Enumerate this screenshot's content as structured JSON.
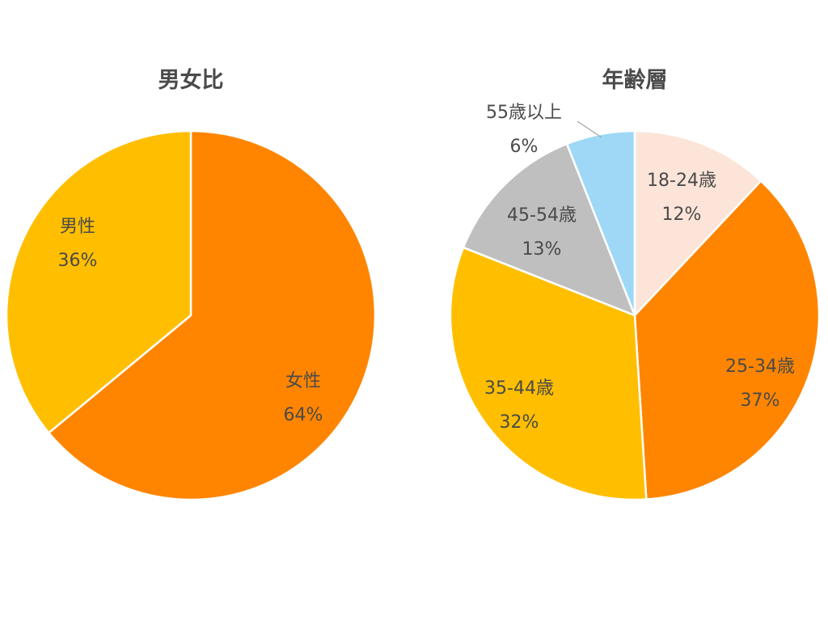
{
  "chart_data": [
    {
      "type": "pie",
      "title": "男女比",
      "slices": [
        {
          "label": "女性",
          "value": 64,
          "value_label": "64%",
          "color": "#FF8500"
        },
        {
          "label": "男性",
          "value": 36,
          "value_label": "36%",
          "color": "#FFBF00"
        }
      ],
      "start_angle_deg": 0,
      "direction": "clockwise",
      "legend": "none"
    },
    {
      "type": "pie",
      "title": "年齢層",
      "slices": [
        {
          "label": "18-24歳",
          "value": 12,
          "value_label": "12%",
          "color": "#FCE4D9"
        },
        {
          "label": "25-34歳",
          "value": 37,
          "value_label": "37%",
          "color": "#FF8500"
        },
        {
          "label": "35-44歳",
          "value": 32,
          "value_label": "32%",
          "color": "#FFBF00"
        },
        {
          "label": "45-54歳",
          "value": 13,
          "value_label": "13%",
          "color": "#BFBFBF"
        },
        {
          "label": "55歳以上",
          "value": 6,
          "value_label": "6%",
          "color": "#9ED8F6"
        }
      ],
      "start_angle_deg": 0,
      "direction": "clockwise",
      "legend": "none"
    }
  ]
}
